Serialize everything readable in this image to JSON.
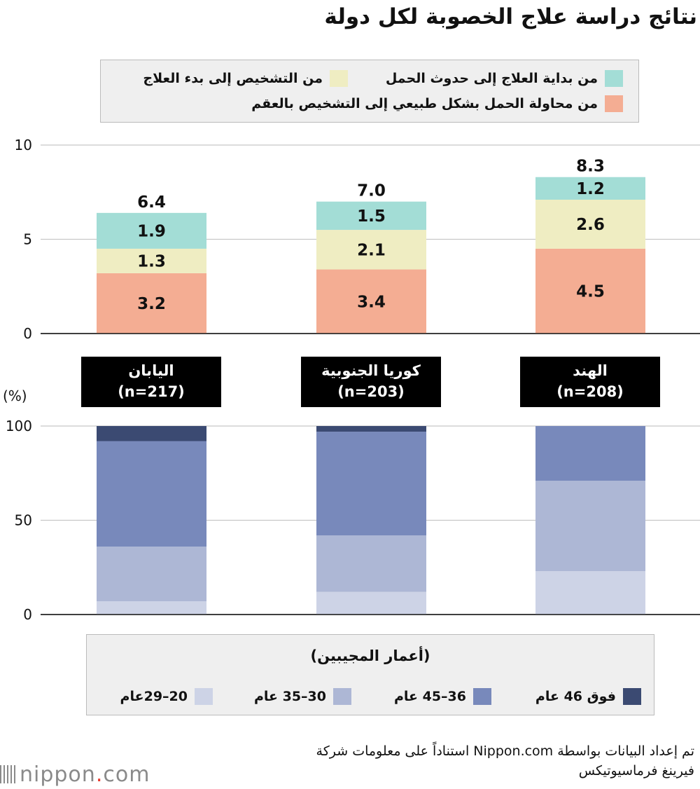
{
  "title": "نتائج دراسة علاج الخصوبة لكل دولة",
  "legend_top": [
    {
      "label": "من بداية العلاج إلى حدوث الحمل",
      "color": "#a3ddd6"
    },
    {
      "label": "من التشخيص إلى بدء العلاج",
      "color": "#efedc2"
    },
    {
      "label": "من محاولة الحمل بشكل طبيعي إلى التشخيص بالعقم",
      "color": "#f4ad93"
    }
  ],
  "countries": [
    {
      "name": "اليابان",
      "n": "(n=217)"
    },
    {
      "name": "كوريا الجنوبية",
      "n": "(n=203)"
    },
    {
      "name": "الهند",
      "n": "(n=208)"
    }
  ],
  "pct_unit": "(%)",
  "legend_bottom": {
    "title": "(أعمار المجيبين)",
    "items": [
      {
        "label": "فوق 46 عام",
        "color": "#3b4a72"
      },
      {
        "label": "36–45 عام",
        "color": "#7889bb"
      },
      {
        "label": "30–35 عام",
        "color": "#adb7d5"
      },
      {
        "label": "20–29عام",
        "color": "#cdd3e6"
      }
    ]
  },
  "footer": {
    "line1": "تم إعداد البيانات بواسطة Nippon.com استناداً على معلومات شركة",
    "line2": "فيرينغ فرماسيوتيكس"
  },
  "logo": {
    "text": "nippon",
    "dot": ".",
    "suffix": "com"
  },
  "chart_data": [
    {
      "type": "bar",
      "stacked": true,
      "categories": [
        "اليابان",
        "كوريا الجنوبية",
        "الهند"
      ],
      "series": [
        {
          "name": "من محاولة الحمل بشكل طبيعي إلى التشخيص بالعقم",
          "color": "#f4ad93",
          "values": [
            3.2,
            3.4,
            4.5
          ],
          "labels": [
            "3.2",
            "3.4",
            "4.5"
          ]
        },
        {
          "name": "من التشخيص إلى بدء العلاج",
          "color": "#efedc2",
          "values": [
            1.3,
            2.1,
            2.6
          ],
          "labels": [
            "1.3",
            "2.1",
            "2.6"
          ]
        },
        {
          "name": "من بداية العلاج إلى حدوث الحمل",
          "color": "#a3ddd6",
          "values": [
            1.9,
            1.5,
            1.2
          ],
          "labels": [
            "1.9",
            "1.5",
            "1.2"
          ]
        }
      ],
      "totals": [
        6.4,
        7.0,
        8.3
      ],
      "total_labels": [
        "6.4",
        "7.0",
        "8.3"
      ],
      "ylim": [
        0,
        10
      ],
      "yticks": [
        0,
        5,
        10
      ],
      "ytick_labels": [
        "0",
        "5",
        "10"
      ],
      "grid": true
    },
    {
      "type": "bar",
      "stacked": true,
      "categories": [
        "اليابان",
        "كوريا الجنوبية",
        "الهند"
      ],
      "series": [
        {
          "name": "20–29عام",
          "color": "#cdd3e6",
          "values": [
            7,
            12,
            23
          ]
        },
        {
          "name": "30–35 عام",
          "color": "#adb7d5",
          "values": [
            29,
            30,
            48
          ]
        },
        {
          "name": "36–45 عام",
          "color": "#7889bb",
          "values": [
            56,
            55,
            29
          ]
        },
        {
          "name": "فوق 46 عام",
          "color": "#3b4a72",
          "values": [
            8,
            3,
            0
          ]
        }
      ],
      "ylim": [
        0,
        100
      ],
      "yticks": [
        0,
        50,
        100
      ],
      "ytick_labels": [
        "0",
        "50",
        "100"
      ],
      "ylabel": "(%)",
      "grid": true
    }
  ]
}
